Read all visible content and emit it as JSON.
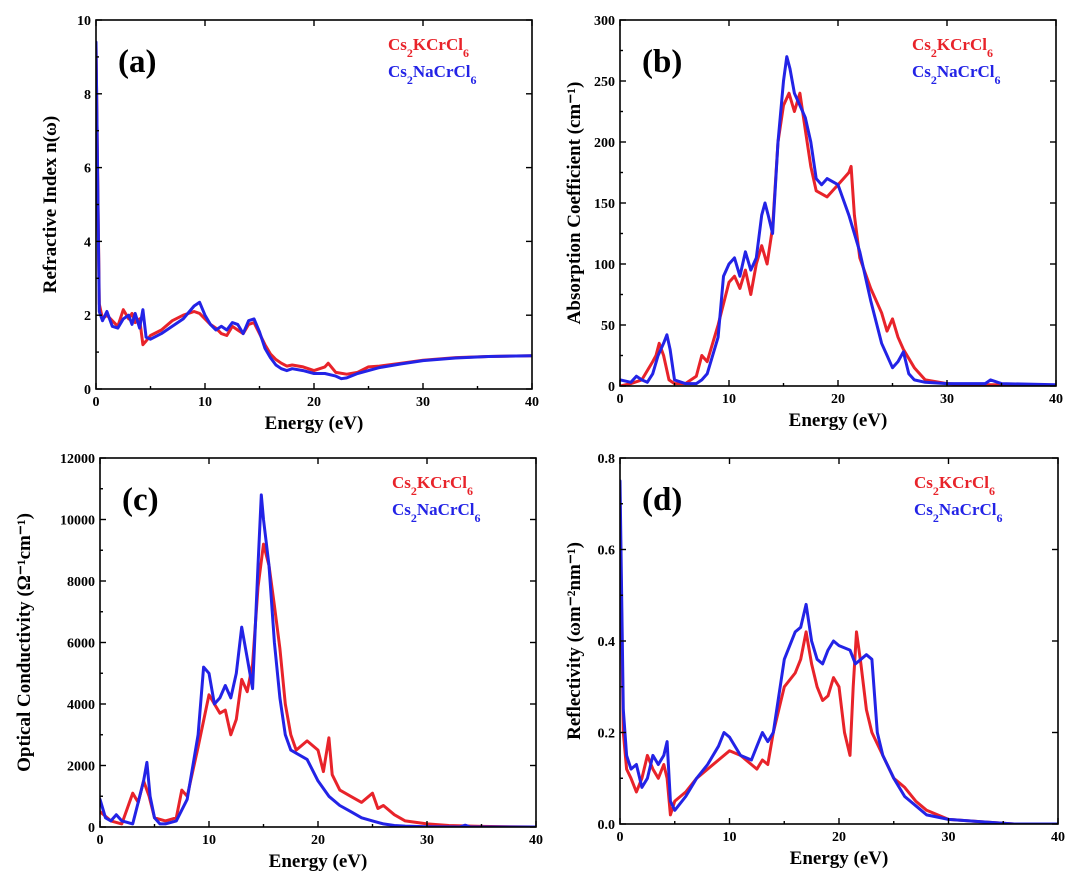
{
  "colors": {
    "red": "#e8232a",
    "blue": "#2323e6"
  },
  "chart_data": [
    {
      "panel": "(a)",
      "type": "line",
      "xlabel": "Energy (eV)",
      "ylabel": "Refractive Index n(ω)",
      "xlim": [
        0,
        40
      ],
      "ylim": [
        0,
        10
      ],
      "xticks": [
        0,
        10,
        20,
        30,
        40
      ],
      "yticks": [
        0,
        2,
        4,
        6,
        8,
        10
      ],
      "legend_position": "top-right",
      "series": [
        {
          "name": "Cs₂KCrCl₆",
          "color": "red",
          "x": [
            0,
            0.3,
            0.6,
            1,
            1.5,
            2,
            2.5,
            3,
            3.3,
            3.6,
            4,
            4.3,
            4.6,
            5,
            6,
            7,
            8,
            9,
            9.5,
            10,
            10.5,
            11,
            11.5,
            12,
            12.5,
            13,
            13.5,
            14,
            14.5,
            15,
            15.5,
            16,
            16.5,
            17,
            17.5,
            18,
            19,
            20,
            21,
            21.3,
            22,
            23,
            24,
            25,
            26,
            28,
            30,
            33,
            36,
            40
          ],
          "y": [
            9.3,
            2.3,
            1.9,
            2.0,
            1.85,
            1.7,
            2.15,
            1.9,
            2.05,
            1.8,
            1.9,
            1.2,
            1.3,
            1.45,
            1.6,
            1.85,
            2.0,
            2.1,
            2.05,
            1.9,
            1.75,
            1.65,
            1.5,
            1.45,
            1.7,
            1.6,
            1.5,
            1.75,
            1.8,
            1.5,
            1.2,
            0.95,
            0.8,
            0.7,
            0.62,
            0.65,
            0.6,
            0.5,
            0.6,
            0.7,
            0.45,
            0.4,
            0.45,
            0.6,
            0.62,
            0.7,
            0.78,
            0.85,
            0.88,
            0.9
          ]
        },
        {
          "name": "Cs₂NaCrCl₆",
          "color": "blue",
          "x": [
            0,
            0.3,
            0.6,
            1,
            1.5,
            2,
            2.5,
            3,
            3.3,
            3.6,
            4,
            4.3,
            4.6,
            5,
            6,
            7,
            8,
            9,
            9.5,
            10,
            10.5,
            11,
            11.5,
            12,
            12.5,
            13,
            13.5,
            14,
            14.5,
            15,
            15.5,
            16,
            16.5,
            17,
            17.5,
            18,
            19,
            20,
            21,
            22,
            22.5,
            23,
            24,
            25,
            26,
            28,
            30,
            33,
            36,
            40
          ],
          "y": [
            9.4,
            2.1,
            1.85,
            2.1,
            1.7,
            1.65,
            1.9,
            2.0,
            1.75,
            2.05,
            1.65,
            2.15,
            1.4,
            1.35,
            1.5,
            1.7,
            1.9,
            2.25,
            2.35,
            2.0,
            1.75,
            1.6,
            1.7,
            1.6,
            1.8,
            1.75,
            1.5,
            1.85,
            1.9,
            1.55,
            1.1,
            0.85,
            0.65,
            0.55,
            0.5,
            0.55,
            0.5,
            0.42,
            0.42,
            0.35,
            0.28,
            0.3,
            0.42,
            0.5,
            0.58,
            0.68,
            0.77,
            0.84,
            0.88,
            0.9
          ]
        }
      ]
    },
    {
      "panel": "(b)",
      "type": "line",
      "xlabel": "Energy (eV)",
      "ylabel": "Absorption Coefficient (cm⁻¹)",
      "xlim": [
        0,
        40
      ],
      "ylim": [
        0,
        300
      ],
      "xticks": [
        0,
        10,
        20,
        30,
        40
      ],
      "yticks": [
        0,
        50,
        100,
        150,
        200,
        250,
        300
      ],
      "legend_position": "top-right",
      "series": [
        {
          "name": "Cs₂KCrCl₆",
          "color": "red",
          "x": [
            0,
            1,
            2,
            3,
            3.3,
            3.6,
            4,
            4.5,
            5,
            6,
            7,
            7.5,
            8,
            9,
            10,
            10.5,
            11,
            11.5,
            12,
            12.5,
            13,
            13.5,
            14,
            14.5,
            15,
            15.5,
            16,
            16.5,
            17,
            17.5,
            18,
            19,
            20,
            20.5,
            21,
            21.2,
            21.5,
            22,
            23,
            24,
            24.5,
            25,
            25.5,
            26,
            27,
            28,
            30,
            32,
            35,
            40
          ],
          "y": [
            0,
            2,
            5,
            20,
            25,
            35,
            25,
            5,
            2,
            2,
            8,
            25,
            20,
            50,
            85,
            90,
            80,
            95,
            75,
            100,
            115,
            100,
            130,
            200,
            230,
            240,
            225,
            240,
            210,
            180,
            160,
            155,
            165,
            170,
            175,
            180,
            140,
            105,
            80,
            60,
            45,
            55,
            40,
            30,
            15,
            5,
            2,
            1,
            1,
            0
          ]
        },
        {
          "name": "Cs₂NaCrCl₆",
          "color": "blue",
          "x": [
            0,
            1,
            1.5,
            2,
            2.5,
            3,
            3.5,
            4,
            4.3,
            4.6,
            5,
            6,
            7,
            7.5,
            8,
            9,
            9.5,
            10,
            10.5,
            11,
            11.5,
            12,
            12.5,
            13,
            13.3,
            13.6,
            14,
            14.5,
            15,
            15.3,
            15.6,
            16,
            16.5,
            17,
            17.5,
            18,
            18.5,
            19,
            20,
            21,
            22,
            23,
            24,
            25,
            25.5,
            26,
            26.5,
            27,
            28,
            30,
            33.5,
            34,
            35,
            40
          ],
          "y": [
            5,
            3,
            8,
            5,
            3,
            10,
            25,
            35,
            42,
            30,
            5,
            2,
            2,
            5,
            10,
            40,
            90,
            100,
            105,
            90,
            110,
            95,
            105,
            140,
            150,
            140,
            125,
            200,
            250,
            270,
            260,
            240,
            230,
            220,
            200,
            170,
            165,
            170,
            165,
            140,
            110,
            70,
            35,
            15,
            20,
            28,
            10,
            5,
            3,
            2,
            2,
            5,
            2,
            1
          ]
        }
      ]
    },
    {
      "panel": "(c)",
      "type": "line",
      "xlabel": "Energy (eV)",
      "ylabel": "Optical Conductivity (Ω⁻¹cm⁻¹)",
      "xlim": [
        0,
        40
      ],
      "ylim": [
        0,
        12000
      ],
      "xticks": [
        0,
        10,
        20,
        30,
        40
      ],
      "yticks": [
        0,
        2000,
        4000,
        6000,
        8000,
        10000,
        12000
      ],
      "legend_position": "top-right",
      "series": [
        {
          "name": "Cs₂KCrCl₆",
          "color": "red",
          "x": [
            0,
            1,
            2,
            3,
            3.5,
            4,
            4.5,
            5,
            6,
            7,
            7.5,
            8,
            9,
            10,
            10.5,
            11,
            11.5,
            12,
            12.5,
            13,
            13.5,
            14,
            14.5,
            15,
            15.5,
            16,
            16.5,
            17,
            17.5,
            18,
            19,
            20,
            20.5,
            21,
            21.3,
            22,
            23,
            24,
            25,
            25.5,
            26,
            27,
            28,
            30,
            32,
            35,
            40
          ],
          "y": [
            500,
            200,
            100,
            1100,
            800,
            1500,
            1000,
            300,
            200,
            300,
            1200,
            1000,
            2600,
            4300,
            4000,
            3700,
            3800,
            3000,
            3500,
            4800,
            4400,
            5300,
            7800,
            9200,
            8500,
            7200,
            5800,
            4000,
            3000,
            2500,
            2800,
            2500,
            1800,
            2900,
            1700,
            1200,
            1000,
            800,
            1100,
            600,
            700,
            400,
            200,
            100,
            50,
            20,
            0
          ]
        },
        {
          "name": "Cs₂NaCrCl₆",
          "color": "blue",
          "x": [
            0,
            0.5,
            1,
            1.5,
            2,
            3,
            3.5,
            4,
            4.3,
            4.6,
            5,
            5.5,
            6,
            7,
            8,
            9,
            9.5,
            10,
            10.5,
            11,
            11.5,
            12,
            12.5,
            13,
            13.5,
            14,
            14.5,
            14.8,
            15,
            15.5,
            16,
            16.5,
            17,
            17.5,
            18,
            19,
            20,
            21,
            22,
            23,
            24,
            25,
            26,
            27,
            28,
            30,
            33,
            33.5,
            34,
            36,
            40
          ],
          "y": [
            900,
            300,
            200,
            400,
            200,
            100,
            800,
            1500,
            2100,
            1000,
            300,
            100,
            100,
            200,
            900,
            3000,
            5200,
            5000,
            4000,
            4200,
            4600,
            4200,
            5000,
            6500,
            5500,
            4500,
            8500,
            10800,
            10000,
            8500,
            6000,
            4200,
            3000,
            2500,
            2400,
            2200,
            1500,
            1000,
            700,
            500,
            300,
            200,
            100,
            50,
            30,
            10,
            0,
            60,
            0,
            0,
            0
          ]
        }
      ]
    },
    {
      "panel": "(d)",
      "type": "line",
      "xlabel": "Energy (eV)",
      "ylabel": "Reflectivity (ωm⁻²nm⁻¹)",
      "xlim": [
        0,
        40
      ],
      "ylim": [
        0.0,
        0.8
      ],
      "xticks": [
        0,
        10,
        20,
        30,
        40
      ],
      "yticks": [
        0.0,
        0.2,
        0.4,
        0.6,
        0.8
      ],
      "legend_position": "top-right",
      "series": [
        {
          "name": "Cs₂KCrCl₆",
          "color": "red",
          "x": [
            0,
            0.3,
            0.6,
            1,
            1.5,
            2,
            2.5,
            3,
            3.5,
            4,
            4.3,
            4.6,
            5,
            6,
            7,
            8,
            9,
            10,
            11,
            12,
            12.5,
            13,
            13.5,
            14,
            15,
            16,
            16.5,
            17,
            17.5,
            18,
            18.5,
            19,
            19.5,
            20,
            20.5,
            21,
            21.3,
            21.6,
            22,
            22.5,
            23,
            24,
            25,
            26,
            27,
            28,
            30,
            33,
            36,
            40
          ],
          "y": [
            0.7,
            0.2,
            0.12,
            0.1,
            0.07,
            0.1,
            0.15,
            0.12,
            0.1,
            0.13,
            0.1,
            0.02,
            0.05,
            0.07,
            0.1,
            0.12,
            0.14,
            0.16,
            0.15,
            0.13,
            0.12,
            0.14,
            0.13,
            0.2,
            0.3,
            0.33,
            0.36,
            0.42,
            0.35,
            0.3,
            0.27,
            0.28,
            0.32,
            0.3,
            0.2,
            0.15,
            0.3,
            0.42,
            0.35,
            0.25,
            0.2,
            0.15,
            0.1,
            0.08,
            0.05,
            0.03,
            0.01,
            0.005,
            0,
            0
          ]
        },
        {
          "name": "Cs₂NaCrCl₆",
          "color": "blue",
          "x": [
            0,
            0.3,
            0.6,
            1,
            1.5,
            2,
            2.5,
            3,
            3.5,
            4,
            4.3,
            4.6,
            5,
            6,
            7,
            8,
            9,
            9.5,
            10,
            11,
            12,
            12.5,
            13,
            13.5,
            14,
            15,
            16,
            16.5,
            17,
            17.5,
            18,
            18.5,
            19,
            19.5,
            20,
            21,
            21.5,
            22,
            22.5,
            23,
            23.5,
            24,
            25,
            26,
            27,
            28,
            30,
            33,
            36,
            40
          ],
          "y": [
            0.75,
            0.25,
            0.15,
            0.12,
            0.13,
            0.08,
            0.1,
            0.15,
            0.13,
            0.15,
            0.18,
            0.05,
            0.03,
            0.06,
            0.1,
            0.13,
            0.17,
            0.2,
            0.19,
            0.15,
            0.14,
            0.17,
            0.2,
            0.18,
            0.2,
            0.36,
            0.42,
            0.43,
            0.48,
            0.4,
            0.36,
            0.35,
            0.38,
            0.4,
            0.39,
            0.38,
            0.35,
            0.36,
            0.37,
            0.36,
            0.2,
            0.15,
            0.1,
            0.06,
            0.04,
            0.02,
            0.01,
            0.005,
            0,
            0
          ]
        }
      ]
    }
  ]
}
